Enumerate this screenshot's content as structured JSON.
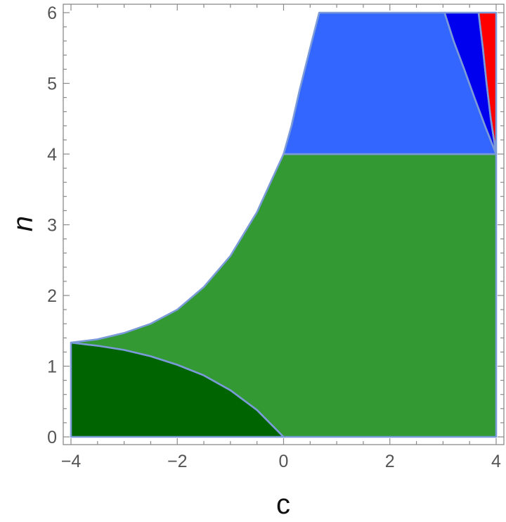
{
  "chart_data": {
    "type": "area",
    "title": "",
    "xlabel": "c",
    "ylabel": "n",
    "xlim": [
      -4,
      4
    ],
    "ylim": [
      0,
      6
    ],
    "xticks": [
      -4,
      -2,
      0,
      2,
      4
    ],
    "yticks": [
      0,
      1,
      2,
      3,
      4,
      5,
      6
    ],
    "xtick_labels": [
      "−4",
      "−2",
      "0",
      "2",
      "4"
    ],
    "ytick_labels": [
      "0",
      "1",
      "2",
      "3",
      "4",
      "5",
      "6"
    ],
    "grid": false,
    "legend": "none",
    "regions": [
      {
        "id": "dark-green-region",
        "color": "#006400",
        "polygon": [
          [
            -4,
            0
          ],
          [
            0,
            0
          ],
          [
            -0.5,
            0.38
          ],
          [
            -1,
            0.66
          ],
          [
            -1.5,
            0.87
          ],
          [
            -2,
            1.02
          ],
          [
            -2.5,
            1.14
          ],
          [
            -3,
            1.23
          ],
          [
            -3.5,
            1.29
          ],
          [
            -4,
            1.333
          ]
        ]
      },
      {
        "id": "green-region",
        "color": "#339933",
        "polygon": [
          [
            0,
            0
          ],
          [
            4,
            0
          ],
          [
            4,
            4
          ],
          [
            0,
            4
          ],
          [
            -0.5,
            3.18
          ],
          [
            -1,
            2.56
          ],
          [
            -1.5,
            2.12
          ],
          [
            -2,
            1.8
          ],
          [
            -2.5,
            1.6
          ],
          [
            -3,
            1.47
          ],
          [
            -3.5,
            1.38
          ],
          [
            -4,
            1.333
          ],
          [
            -3.5,
            1.29
          ],
          [
            -3,
            1.23
          ],
          [
            -2.5,
            1.14
          ],
          [
            -2,
            1.02
          ],
          [
            -1.5,
            0.87
          ],
          [
            -1,
            0.66
          ],
          [
            -0.5,
            0.38
          ]
        ]
      },
      {
        "id": "light-blue-region",
        "color": "#3366FF",
        "polygon": [
          [
            0,
            4
          ],
          [
            4,
            4
          ],
          [
            3.8,
            4.38
          ],
          [
            3.6,
            4.78
          ],
          [
            3.4,
            5.2
          ],
          [
            3.2,
            5.6
          ],
          [
            3.03,
            6
          ],
          [
            0.67,
            6
          ],
          [
            0.5,
            5.5
          ],
          [
            0.3,
            4.9
          ],
          [
            0.15,
            4.4
          ]
        ]
      },
      {
        "id": "blue-region",
        "color": "#0000EE",
        "polygon": [
          [
            4,
            4
          ],
          [
            3.8,
            4.38
          ],
          [
            3.6,
            4.78
          ],
          [
            3.4,
            5.2
          ],
          [
            3.2,
            5.6
          ],
          [
            3.03,
            6
          ],
          [
            3.67,
            6
          ],
          [
            3.75,
            5.5
          ],
          [
            3.82,
            5
          ],
          [
            3.9,
            4.5
          ]
        ]
      },
      {
        "id": "red-region",
        "color": "#FF0000",
        "polygon": [
          [
            4,
            4
          ],
          [
            3.9,
            4.5
          ],
          [
            3.82,
            5
          ],
          [
            3.75,
            5.5
          ],
          [
            3.67,
            6
          ],
          [
            4,
            6
          ]
        ]
      }
    ]
  }
}
